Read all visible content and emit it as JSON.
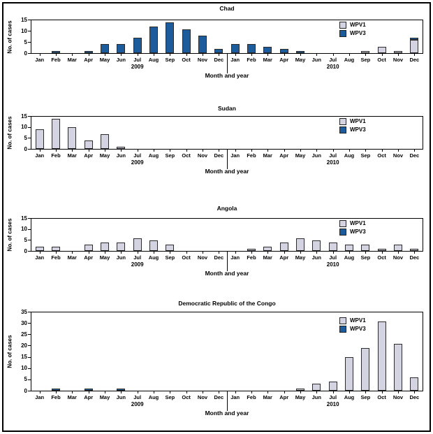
{
  "figure": {
    "xlabel": "Month and year",
    "ylabel": "No. of cases",
    "legend": [
      "WPV1",
      "WPV3"
    ],
    "colors": {
      "wpv1_fill": "#d3d3e1",
      "wpv3_fill": "#1c5c9c",
      "bar_outline": "#2b2b2b",
      "axis": "#000000"
    }
  },
  "chart_data": [
    {
      "type": "bar",
      "title": "Chad",
      "xlabel": "Month and year",
      "ylabel": "No. of cases",
      "stacked": true,
      "grid": false,
      "legend_position": "top-right-inside",
      "legend": [
        "WPV1",
        "WPV3"
      ],
      "categories": [
        "Jan",
        "Feb",
        "Mar",
        "Apr",
        "May",
        "Jun",
        "Jul",
        "Aug",
        "Sep",
        "Oct",
        "Nov",
        "Dec",
        "Jan",
        "Feb",
        "Mar",
        "Apr",
        "May",
        "Jun",
        "Jul",
        "Aug",
        "Sep",
        "Oct",
        "Nov",
        "Dec"
      ],
      "year_labels": [
        "2009",
        "2010"
      ],
      "ylim": [
        0,
        15
      ],
      "yticks": [
        0,
        5,
        10,
        15
      ],
      "series": [
        {
          "name": "WPV1",
          "color": "#d3d3e1",
          "values": [
            0,
            0,
            0,
            0,
            0,
            0,
            0,
            0,
            0,
            0,
            0,
            0,
            0,
            0,
            0,
            0,
            0,
            0,
            0,
            0,
            1,
            3,
            1,
            6
          ]
        },
        {
          "name": "WPV3",
          "color": "#1c5c9c",
          "values": [
            0,
            1,
            0,
            1,
            4,
            4,
            7,
            12,
            14,
            11,
            8,
            2,
            4,
            4,
            3,
            2,
            1,
            0,
            0,
            0,
            0,
            0,
            0,
            1
          ]
        }
      ]
    },
    {
      "type": "bar",
      "title": "Sudan",
      "xlabel": "Month and year",
      "ylabel": "No. of cases",
      "stacked": true,
      "grid": false,
      "legend_position": "top-right-inside",
      "legend": [
        "WPV1",
        "WPV3"
      ],
      "categories": [
        "Jan",
        "Feb",
        "Mar",
        "Apr",
        "May",
        "Jun",
        "Jul",
        "Aug",
        "Sep",
        "Oct",
        "Nov",
        "Dec",
        "Jan",
        "Feb",
        "Mar",
        "Apr",
        "May",
        "Jun",
        "Jul",
        "Aug",
        "Sep",
        "Oct",
        "Nov",
        "Dec"
      ],
      "year_labels": [
        "2009",
        "2010"
      ],
      "ylim": [
        0,
        15
      ],
      "yticks": [
        0,
        5,
        10,
        15
      ],
      "series": [
        {
          "name": "WPV1",
          "color": "#d3d3e1",
          "values": [
            9,
            14,
            10,
            4,
            7,
            1,
            0,
            0,
            0,
            0,
            0,
            0,
            0,
            0,
            0,
            0,
            0,
            0,
            0,
            0,
            0,
            0,
            0,
            0
          ]
        },
        {
          "name": "WPV3",
          "color": "#1c5c9c",
          "values": [
            0,
            0,
            0,
            0,
            0,
            0,
            0,
            0,
            0,
            0,
            0,
            0,
            0,
            0,
            0,
            0,
            0,
            0,
            0,
            0,
            0,
            0,
            0,
            0
          ]
        }
      ]
    },
    {
      "type": "bar",
      "title": "Angola",
      "xlabel": "Month and year",
      "ylabel": "No. of cases",
      "stacked": true,
      "grid": false,
      "legend_position": "top-right-inside",
      "legend": [
        "WPV1",
        "WPV3"
      ],
      "categories": [
        "Jan",
        "Feb",
        "Mar",
        "Apr",
        "May",
        "Jun",
        "Jul",
        "Aug",
        "Sep",
        "Oct",
        "Nov",
        "Dec",
        "Jan",
        "Feb",
        "Mar",
        "Apr",
        "May",
        "Jun",
        "Jul",
        "Aug",
        "Sep",
        "Oct",
        "Nov",
        "Dec"
      ],
      "year_labels": [
        "2009",
        "2010"
      ],
      "ylim": [
        0,
        15
      ],
      "yticks": [
        0,
        5,
        10,
        15
      ],
      "series": [
        {
          "name": "WPV1",
          "color": "#d3d3e1",
          "values": [
            2,
            2,
            0,
            3,
            4,
            4,
            6,
            5,
            3,
            0,
            0,
            0,
            0,
            1,
            2,
            4,
            6,
            5,
            4,
            3,
            3,
            1,
            3,
            1
          ]
        },
        {
          "name": "WPV3",
          "color": "#1c5c9c",
          "values": [
            0,
            0,
            0,
            0,
            0,
            0,
            0,
            0,
            0,
            0,
            0,
            0,
            0,
            0,
            0,
            0,
            0,
            0,
            0,
            0,
            0,
            0,
            0,
            0
          ]
        }
      ]
    },
    {
      "type": "bar",
      "title": "Democratic Republic of the Congo",
      "xlabel": "Month and year",
      "ylabel": "No. of cases",
      "stacked": true,
      "grid": false,
      "legend_position": "top-right-inside",
      "legend": [
        "WPV1",
        "WPV3"
      ],
      "categories": [
        "Jan",
        "Feb",
        "Mar",
        "Apr",
        "May",
        "Jun",
        "Jul",
        "Aug",
        "Sep",
        "Oct",
        "Nov",
        "Dec",
        "Jan",
        "Feb",
        "Mar",
        "Apr",
        "May",
        "Jun",
        "Jul",
        "Aug",
        "Sep",
        "Oct",
        "Nov",
        "Dec"
      ],
      "year_labels": [
        "2009",
        "2010"
      ],
      "ylim": [
        0,
        35
      ],
      "yticks": [
        0,
        5,
        10,
        15,
        20,
        25,
        30,
        35
      ],
      "series": [
        {
          "name": "WPV1",
          "color": "#d3d3e1",
          "values": [
            0,
            0,
            0,
            0,
            0,
            0,
            0,
            0,
            0,
            0,
            0,
            0,
            0,
            0,
            0,
            0,
            1,
            3,
            4,
            15,
            19,
            31,
            21,
            6
          ]
        },
        {
          "name": "WPV3",
          "color": "#1c5c9c",
          "values": [
            0,
            1,
            0,
            1,
            0,
            1,
            0,
            0,
            0,
            0,
            0,
            0,
            0,
            0,
            0,
            0,
            0,
            0,
            0,
            0,
            0,
            0,
            0,
            0
          ]
        }
      ]
    }
  ]
}
